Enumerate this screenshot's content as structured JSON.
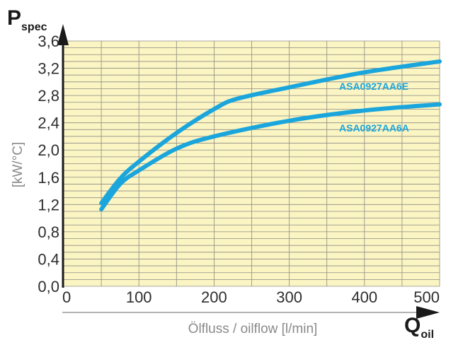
{
  "chart_data": {
    "type": "line",
    "y_symbol": "P",
    "y_symbol_sub": "spec",
    "x_symbol": "Q",
    "x_symbol_sub": "oil",
    "ylabel": "[kW/°C]",
    "xlabel": "Ölfluss / oilflow [l/min]",
    "xlim": [
      0,
      500
    ],
    "ylim": [
      0,
      3.6
    ],
    "x_ticks": [
      "0",
      "100",
      "200",
      "300",
      "400",
      "500"
    ],
    "y_ticks": [
      "0,0",
      "0,4",
      "0,8",
      "1,2",
      "1,6",
      "2,0",
      "2,4",
      "2,8",
      "3,2",
      "3,6"
    ],
    "grid": true,
    "colors": {
      "background": "#fbf4c3",
      "grid": "#8c8c84",
      "series": "#1aa6dc",
      "axis": "#1a1a1a"
    },
    "series": [
      {
        "name": "ASA0927AA6E",
        "x": [
          50,
          75,
          100,
          150,
          200,
          230,
          300,
          400,
          500
        ],
        "y": [
          1.22,
          1.58,
          1.83,
          2.25,
          2.6,
          2.75,
          2.92,
          3.14,
          3.3
        ]
      },
      {
        "name": "ASA0927AA6A",
        "x": [
          50,
          75,
          100,
          150,
          200,
          300,
          400,
          500
        ],
        "y": [
          1.13,
          1.5,
          1.7,
          2.02,
          2.2,
          2.43,
          2.58,
          2.67
        ]
      }
    ]
  }
}
